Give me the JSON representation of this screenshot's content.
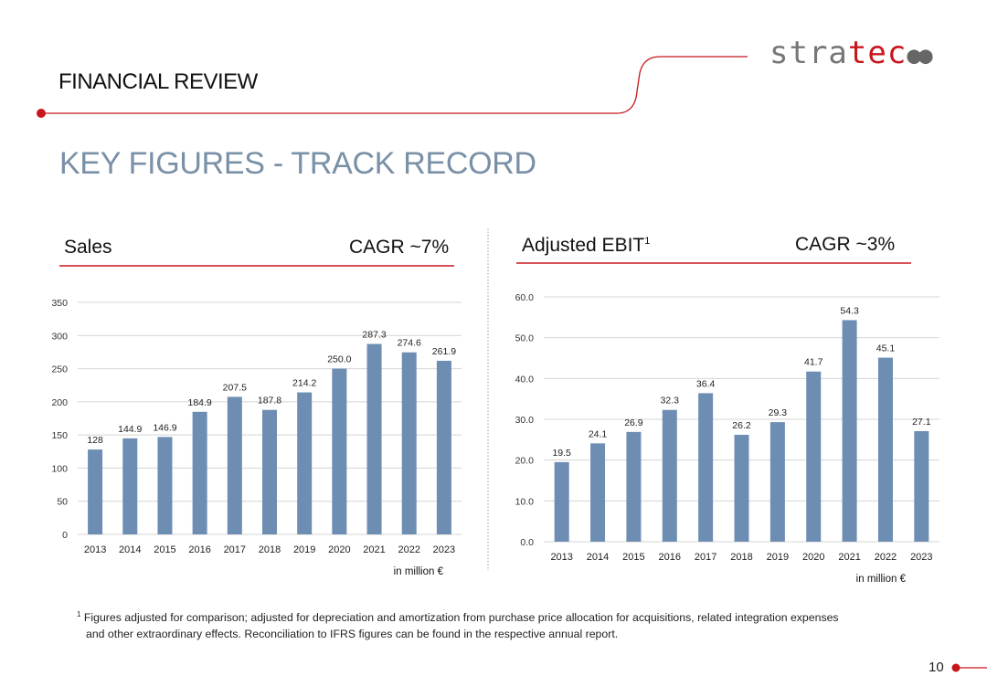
{
  "header": {
    "section_title": "FINANCIAL REVIEW",
    "logo_prefix": "stra",
    "logo_highlight": "tec",
    "logo_dots": "●●",
    "page_heading": "KEY FIGURES - TRACK RECORD",
    "page_number": "10"
  },
  "colors": {
    "accent": "#c8161d",
    "bar": "#6d8db3",
    "heading": "#7990a6"
  },
  "panels": {
    "sales": {
      "label": "Sales",
      "cagr": "CAGR ~7%",
      "unit": "in million €"
    },
    "ebit": {
      "label": "Adjusted EBIT",
      "footnote_mark": "1",
      "cagr": "CAGR ~3%",
      "unit": "in million €"
    }
  },
  "footnote": {
    "mark": "1",
    "line1": "Figures adjusted for comparison; adjusted for depreciation and amortization from purchase price allocation for acquisitions, related integration expenses",
    "line2": "and other extraordinary effects. Reconciliation to IFRS figures can be found in the respective annual report."
  },
  "chart_data": [
    {
      "type": "bar",
      "title": "Sales",
      "categories": [
        "2013",
        "2014",
        "2015",
        "2016",
        "2017",
        "2018",
        "2019",
        "2020",
        "2021",
        "2022",
        "2023"
      ],
      "values": [
        128,
        144.9,
        146.9,
        184.9,
        207.5,
        187.8,
        214.2,
        250.0,
        287.3,
        274.6,
        261.9
      ],
      "value_labels": [
        "128",
        "144.9",
        "146.9",
        "184.9",
        "207.5",
        "187.8",
        "214.2",
        "250.0",
        "287.3",
        "274.6",
        "261.9"
      ],
      "ylim": [
        0,
        350
      ],
      "yticks": [
        "0",
        "50",
        "100",
        "150",
        "200",
        "250",
        "300",
        "350"
      ],
      "grid": true
    },
    {
      "type": "bar",
      "title": "Adjusted EBIT",
      "categories": [
        "2013",
        "2014",
        "2015",
        "2016",
        "2017",
        "2018",
        "2019",
        "2020",
        "2021",
        "2022",
        "2023"
      ],
      "values": [
        19.5,
        24.1,
        26.9,
        32.3,
        36.4,
        26.2,
        29.3,
        41.7,
        54.3,
        45.1,
        27.1
      ],
      "value_labels": [
        "19.5",
        "24.1",
        "26.9",
        "32.3",
        "36.4",
        "26.2",
        "29.3",
        "41.7",
        "54.3",
        "45.1",
        "27.1"
      ],
      "ylim": [
        0,
        60
      ],
      "yticks": [
        "0.0",
        "10.0",
        "20.0",
        "30.0",
        "40.0",
        "50.0",
        "60.0"
      ],
      "grid": true
    }
  ]
}
